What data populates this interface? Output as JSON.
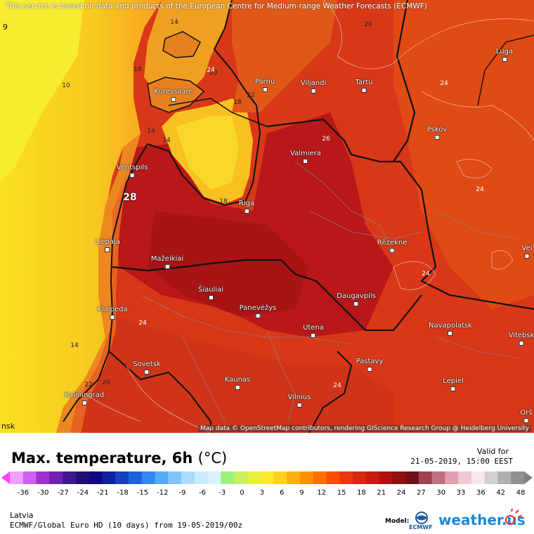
{
  "map": {
    "notice": "This service is based on data and products of the European Centre for Medium-range Weather Forecasts (ECMWF)",
    "attribution": "Map data © OpenStreetMap contributors, rendering GIScience Research Group @ Heidelberg University",
    "corner_top_left": "9",
    "corner_bottom_left": "nsk",
    "cities": [
      {
        "name": "Pärnu"
      },
      {
        "name": "Viljandi"
      },
      {
        "name": "Tartu"
      },
      {
        "name": "Luga"
      },
      {
        "name": "Kuressaare"
      },
      {
        "name": "Pskov"
      },
      {
        "name": "Valmiera"
      },
      {
        "name": "Ventspils"
      },
      {
        "name": "Riga"
      },
      {
        "name": "Rēzekne"
      },
      {
        "name": "Liepāja"
      },
      {
        "name": "Mažeikiai"
      },
      {
        "name": "Šiauliai"
      },
      {
        "name": "Panevėžys"
      },
      {
        "name": "Daugavpils"
      },
      {
        "name": "Klaipeda"
      },
      {
        "name": "Utena"
      },
      {
        "name": "Navapolatsk"
      },
      {
        "name": "Vitebsk"
      },
      {
        "name": "Sovetsk"
      },
      {
        "name": "Pastavy"
      },
      {
        "name": "Kaunas"
      },
      {
        "name": "Lepiel"
      },
      {
        "name": "Kaliningrad"
      },
      {
        "name": "Vilnius"
      },
      {
        "name": "Orš"
      },
      {
        "name": "Vel"
      }
    ],
    "contour_labels": [
      "14",
      "20",
      "18",
      "10",
      "22",
      "26",
      "24",
      "14",
      "28",
      "18",
      "24",
      "24",
      "14",
      "22",
      "20",
      "24",
      "24",
      "20",
      "24",
      "14"
    ],
    "max_value_label": "28"
  },
  "footer": {
    "title": "Max. temperature, 6h",
    "unit": "(°C)",
    "valid_label": "Valid for",
    "valid_time": "21-05-2019, 15:00 EEST",
    "region": "Latvia",
    "model_line": "ECMWF/Global Euro HD (10 days) from 19-05-2019/00z",
    "model_label": "Model:",
    "ecmwf_text": "ECMWF",
    "brand": "weather.us"
  },
  "colorbar": {
    "ticks": [
      "-36",
      "-30",
      "-27",
      "-24",
      "-21",
      "-18",
      "-15",
      "-12",
      "-9",
      "-6",
      "-3",
      "0",
      "3",
      "6",
      "9",
      "12",
      "15",
      "18",
      "21",
      "24",
      "27",
      "30",
      "33",
      "36",
      "42",
      "48"
    ],
    "colors": [
      "#f0a0ff",
      "#d060f0",
      "#a030d0",
      "#7020b0",
      "#401890",
      "#201070",
      "#100880",
      "#1020a0",
      "#1840c0",
      "#2060e0",
      "#3088f0",
      "#58a8f8",
      "#80c4fc",
      "#a8dcff",
      "#c8ecff",
      "#d8f4ff",
      "#a0f080",
      "#c8f060",
      "#e8f040",
      "#ffe830",
      "#ffd020",
      "#ffb010",
      "#ff9000",
      "#ff7000",
      "#f85000",
      "#e83810",
      "#d82810",
      "#c81c10",
      "#b01010",
      "#901010",
      "#701018",
      "#a04050",
      "#c07080",
      "#e0a0b0",
      "#f0c8d0",
      "#f8e8ec",
      "#d0d0d0",
      "#b0b0b0",
      "#909090"
    ]
  }
}
